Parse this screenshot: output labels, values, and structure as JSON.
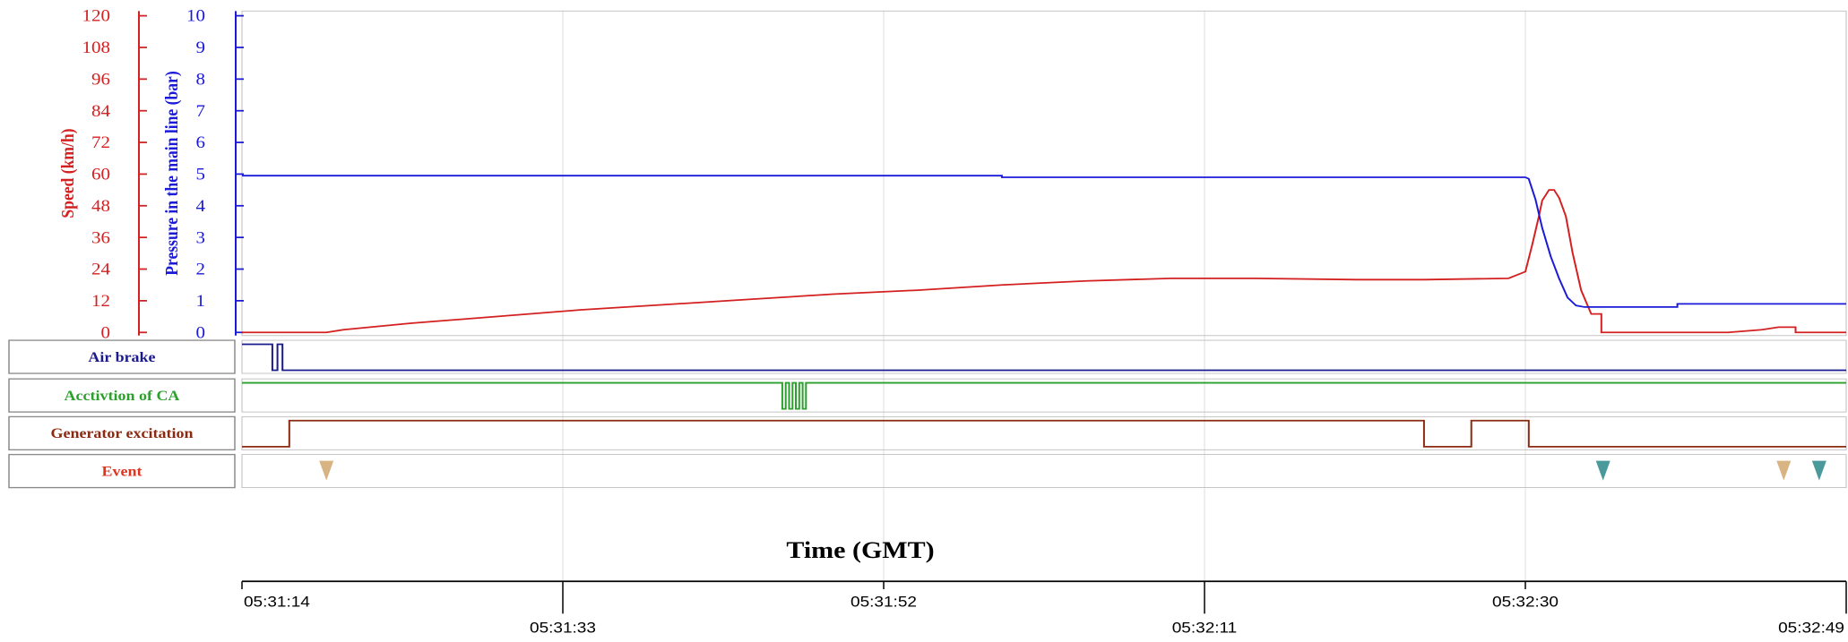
{
  "chart_data": {
    "type": "line",
    "xlabel": "Time (GMT)",
    "x_range_s": [
      0,
      95
    ],
    "x_ticks": [
      {
        "t": 0,
        "label": "05:31:14"
      },
      {
        "t": 19,
        "label": "05:31:33"
      },
      {
        "t": 38,
        "label": "05:31:52"
      },
      {
        "t": 57,
        "label": "05:32:11"
      },
      {
        "t": 76,
        "label": "05:32:30"
      },
      {
        "t": 95,
        "label": "05:32:49"
      }
    ],
    "grid": true,
    "axes": {
      "speed": {
        "label": "Speed (km/h)",
        "color": "#d42020",
        "ylim": [
          0,
          120
        ],
        "ticks": [
          "0",
          "12",
          "24",
          "36",
          "48",
          "60",
          "72",
          "84",
          "96",
          "108",
          "120"
        ]
      },
      "pressure": {
        "label": "Pressure in the main line (bar)",
        "color": "#1a1ad8",
        "ylim": [
          0,
          10
        ],
        "ticks": [
          "0",
          "1",
          "2",
          "3",
          "4",
          "5",
          "6",
          "7",
          "8",
          "9",
          "10"
        ]
      }
    },
    "series": [
      {
        "name": "Speed (km/h)",
        "axis": "speed",
        "color": "#d42020",
        "points": [
          [
            0,
            0
          ],
          [
            5,
            0
          ],
          [
            6,
            1
          ],
          [
            10,
            3.5
          ],
          [
            15,
            6
          ],
          [
            20,
            8.5
          ],
          [
            25,
            10.5
          ],
          [
            30,
            12.5
          ],
          [
            35,
            14.5
          ],
          [
            40,
            16
          ],
          [
            45,
            18
          ],
          [
            50,
            19.5
          ],
          [
            55,
            20.5
          ],
          [
            60,
            20.5
          ],
          [
            66,
            20
          ],
          [
            70,
            20
          ],
          [
            75,
            20.5
          ],
          [
            76,
            23
          ],
          [
            76.4,
            33
          ],
          [
            76.8,
            44
          ],
          [
            77,
            50
          ],
          [
            77.4,
            54
          ],
          [
            77.7,
            54
          ],
          [
            78,
            51
          ],
          [
            78.4,
            44
          ],
          [
            78.8,
            30
          ],
          [
            79.3,
            16
          ],
          [
            79.9,
            7
          ],
          [
            80.5,
            7
          ],
          [
            80.5,
            0
          ],
          [
            88,
            0
          ],
          [
            90,
            1
          ],
          [
            91,
            2
          ],
          [
            92,
            2
          ],
          [
            92,
            0
          ],
          [
            95,
            0
          ]
        ]
      },
      {
        "name": "Pressure in the main line (bar)",
        "axis": "pressure",
        "color": "#1a1ad8",
        "points": [
          [
            0,
            4.95
          ],
          [
            45,
            4.95
          ],
          [
            45,
            4.9
          ],
          [
            76,
            4.9
          ],
          [
            76.2,
            4.85
          ],
          [
            76.6,
            4.2
          ],
          [
            77,
            3.3
          ],
          [
            77.5,
            2.4
          ],
          [
            78,
            1.7
          ],
          [
            78.5,
            1.1
          ],
          [
            79,
            0.85
          ],
          [
            79.5,
            0.8
          ],
          [
            85,
            0.8
          ],
          [
            85,
            0.9
          ],
          [
            95,
            0.9
          ]
        ]
      }
    ],
    "digital_tracks": [
      {
        "label": "Air brake",
        "color": "#1a1a8c",
        "segments": [
          [
            0,
            1
          ],
          [
            1.8,
            1
          ],
          [
            1.8,
            0
          ],
          [
            2.1,
            0
          ],
          [
            2.1,
            1
          ],
          [
            2.4,
            1
          ],
          [
            2.4,
            0
          ],
          [
            95,
            0
          ]
        ]
      },
      {
        "label": "Acctivtion of CA",
        "color": "#2ca02c",
        "segments": [
          [
            0,
            1
          ],
          [
            32,
            1
          ],
          [
            32,
            0
          ],
          [
            32.2,
            0
          ],
          [
            32.2,
            1
          ],
          [
            32.4,
            1
          ],
          [
            32.4,
            0
          ],
          [
            32.6,
            0
          ],
          [
            32.6,
            1
          ],
          [
            32.8,
            1
          ],
          [
            32.8,
            0
          ],
          [
            33,
            0
          ],
          [
            33,
            1
          ],
          [
            33.2,
            1
          ],
          [
            33.2,
            0
          ],
          [
            33.4,
            0
          ],
          [
            33.4,
            1
          ],
          [
            95,
            1
          ]
        ]
      },
      {
        "label": "Generator excitation",
        "color": "#8b2a10",
        "segments": [
          [
            0,
            0
          ],
          [
            2.8,
            0
          ],
          [
            2.8,
            1
          ],
          [
            70,
            1
          ],
          [
            70,
            0
          ],
          [
            72.8,
            0
          ],
          [
            72.8,
            1
          ],
          [
            76.2,
            1
          ],
          [
            76.2,
            0
          ],
          [
            95,
            0
          ]
        ]
      }
    ],
    "events": {
      "label": "Event",
      "markers": [
        {
          "t": 5,
          "color": "#d9b483"
        },
        {
          "t": 80.6,
          "color": "#4a9a9c"
        },
        {
          "t": 91.3,
          "color": "#d9b483"
        },
        {
          "t": 93.4,
          "color": "#4a9a9c"
        }
      ]
    }
  }
}
